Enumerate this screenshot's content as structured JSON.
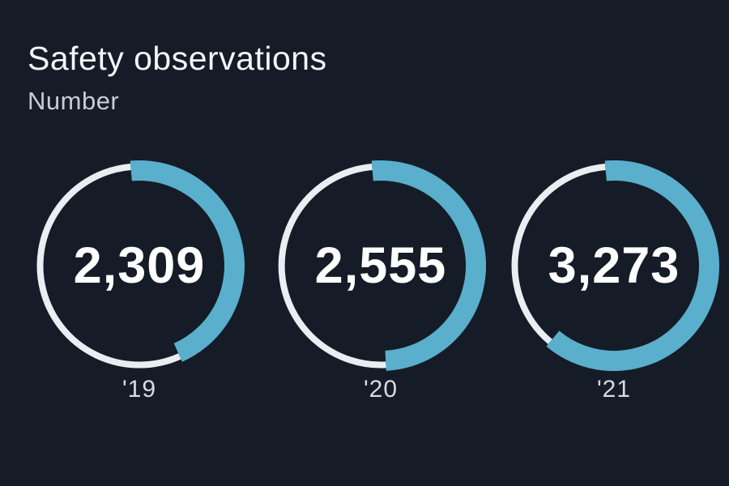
{
  "card": {
    "background_color": "#151C27"
  },
  "header": {
    "title": "Safety observations",
    "subtitle": "Number"
  },
  "chart_data": {
    "type": "donut",
    "title": "Safety observations",
    "subtitle": "Number",
    "unit": "Number",
    "categories": [
      "'19",
      "'20",
      "'21"
    ],
    "values": [
      2309,
      2555,
      3273
    ],
    "series": [
      {
        "label": "'19",
        "value": 2309,
        "value_display": "2,309",
        "arc_start_deg": -5,
        "arc_end_deg": 156
      },
      {
        "label": "'20",
        "value": 2555,
        "value_display": "2,555",
        "arc_start_deg": -5,
        "arc_end_deg": 177
      },
      {
        "label": "'21",
        "value": 3273,
        "value_display": "3,273",
        "arc_start_deg": -5,
        "arc_end_deg": 220
      }
    ],
    "layout": {
      "arc_direction": "clockwise",
      "arc_start_position": "top",
      "legend": "none",
      "grid": false
    },
    "colors": {
      "arc": "#59AFCC",
      "track": "#E9EEF3",
      "value_text": "#FFFFFF",
      "label_text": "#D6DBE1",
      "title_text": "#F3F6F9",
      "subtitle_text": "#C7CDD6",
      "background": "#151C27"
    }
  }
}
